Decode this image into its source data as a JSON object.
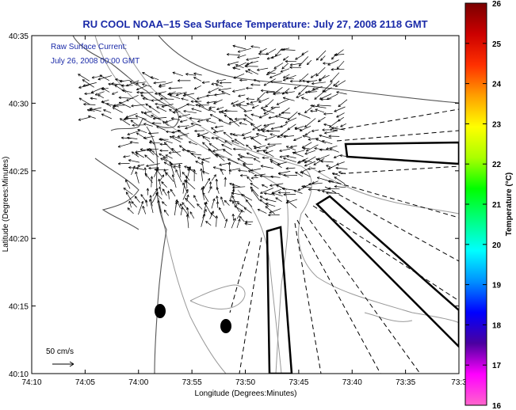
{
  "title": "RU COOL  NOAA–15  Sea Surface Temperature:  July 27, 2008 2118 GMT",
  "current_note": {
    "line1": "Raw Surface Current:",
    "line2": "July 26, 2008 00:00 GMT"
  },
  "scale_label": "50 cm/s",
  "x_axis_label": "Longitude (Degrees:Minutes)",
  "y_axis_label": "Latitude (Degrees:Minutes)",
  "x_ticks": [
    "74:10",
    "74:05",
    "74:00",
    "73:55",
    "73:50",
    "73:45",
    "73:40",
    "73:35",
    "73:3"
  ],
  "y_ticks": [
    "40:35",
    "40:30",
    "40:25",
    "40:20",
    "40:15",
    "40:10"
  ],
  "colorbar": {
    "label": "Temperature (°C)",
    "ticks": [
      "26",
      "25",
      "24",
      "23",
      "22",
      "21",
      "20",
      "19",
      "18",
      "17",
      "16"
    ],
    "min": 16,
    "max": 26,
    "stops": [
      "#ff66cc",
      "#ff00ff",
      "#4b00a0",
      "#0000ff",
      "#0090ff",
      "#00ffff",
      "#00ff80",
      "#00ff00",
      "#aaff00",
      "#ffff00",
      "#ffa000",
      "#ff3000",
      "#cc0000",
      "#7a0000"
    ]
  },
  "colors": {
    "title": "#1a2aa8",
    "coast": "#555555",
    "bathymetry": "#999999",
    "arrows": "#000000"
  }
}
